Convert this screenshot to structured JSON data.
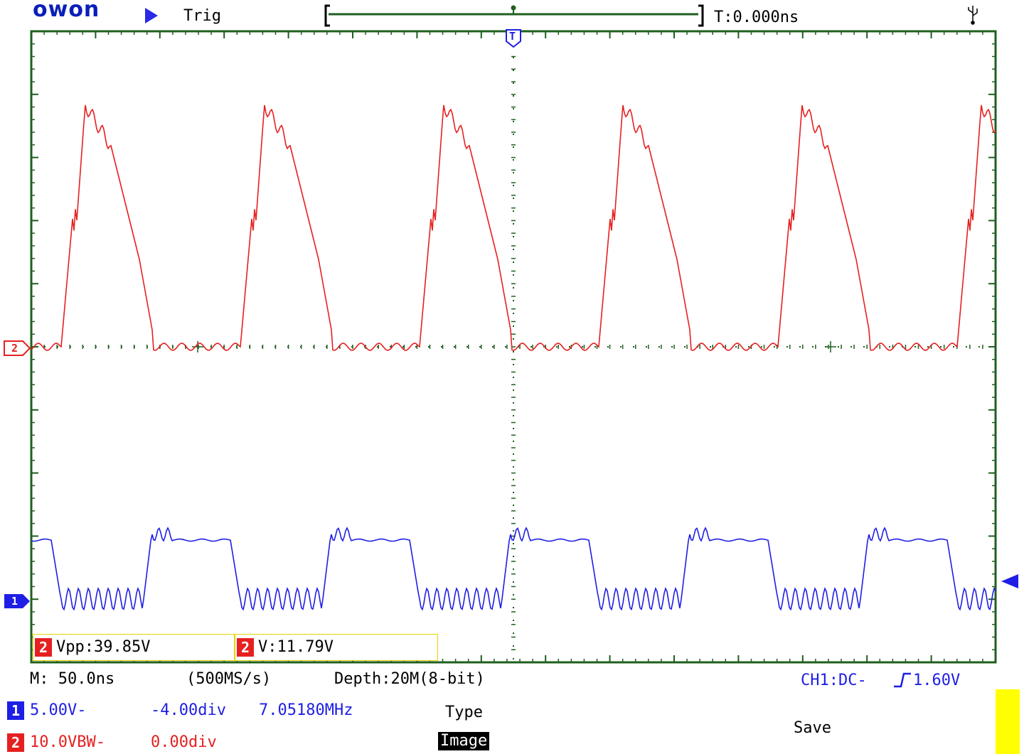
{
  "header": {
    "brand": "owon",
    "run_state_icon": "play-triangle-icon",
    "trigger_status": "Trig",
    "trigger_time": "T:0.000ns",
    "trigger_marker": "T",
    "usb_icon": "usb-icon"
  },
  "markers": {
    "ch2_label": "2",
    "ch1_label": "1"
  },
  "measurements": [
    {
      "channel": "2",
      "text": "Vpp:39.85V"
    },
    {
      "channel": "2",
      "text": "V:11.79V"
    }
  ],
  "status": {
    "timebase": "M: 50.0ns",
    "sample_rate": "(500MS/s)",
    "depth": "Depth:20M(8-bit)",
    "trigger": "CH1:DC-",
    "trigger_level": "1.60V"
  },
  "channels": {
    "ch1": {
      "label": "1",
      "scale": "5.00V-",
      "offset": "-4.00div",
      "freq": "7.05180MHz"
    },
    "ch2": {
      "label": "2",
      "scale": "10.0VBW-",
      "offset": "0.00div"
    }
  },
  "menu": {
    "type_title": "Type",
    "type_value": "Image",
    "save_label": "Save"
  },
  "colors": {
    "ch1": "#1E1EE6",
    "ch2": "#E62020",
    "grid": "#1F5F1F",
    "meas_border": "#E6D400",
    "softkey": "#FFFF00"
  }
}
